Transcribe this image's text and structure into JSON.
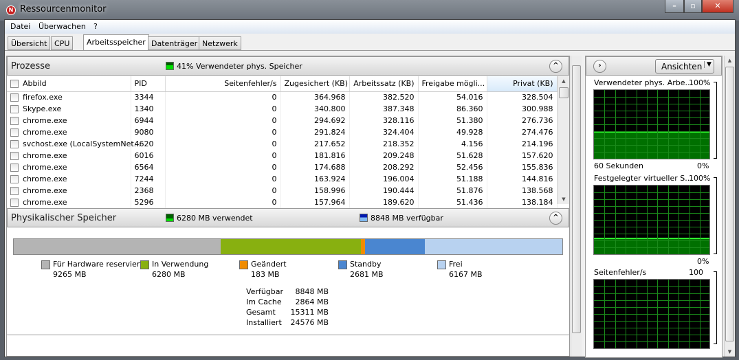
{
  "window": {
    "title": "Ressourcenmonitor",
    "icon": "resource-monitor-icon",
    "controls": [
      "minimize",
      "maximize",
      "close"
    ]
  },
  "menu": [
    "Datei",
    "Überwachen",
    "?"
  ],
  "tabs": [
    {
      "label": "Übersicht"
    },
    {
      "label": "CPU"
    },
    {
      "label": "Arbeitsspeicher",
      "active": true
    },
    {
      "label": "Datenträger"
    },
    {
      "label": "Netzwerk"
    }
  ],
  "processes": {
    "title": "Prozesse",
    "indicator": "41% Verwendeter phys. Speicher",
    "indicator_color": "#00c800",
    "columns": [
      "Abbild",
      "PID",
      "Seitenfehler/s",
      "Zugesichert (KB)",
      "Arbeitssatz (KB)",
      "Freigabe mögli...",
      "Privat (KB)"
    ],
    "sorted_column": "Privat (KB)",
    "rows": [
      [
        "firefox.exe",
        "3344",
        "0",
        "364.968",
        "382.520",
        "54.016",
        "328.504"
      ],
      [
        "Skype.exe",
        "1340",
        "0",
        "340.800",
        "387.348",
        "86.360",
        "300.988"
      ],
      [
        "chrome.exe",
        "6944",
        "0",
        "294.692",
        "328.116",
        "51.380",
        "276.736"
      ],
      [
        "chrome.exe",
        "9080",
        "0",
        "291.824",
        "324.404",
        "49.928",
        "274.476"
      ],
      [
        "svchost.exe (LocalSystemNet...",
        "4620",
        "0",
        "217.652",
        "218.352",
        "4.156",
        "214.196"
      ],
      [
        "chrome.exe",
        "6016",
        "0",
        "181.816",
        "209.248",
        "51.628",
        "157.620"
      ],
      [
        "chrome.exe",
        "6564",
        "0",
        "174.688",
        "208.292",
        "52.456",
        "155.836"
      ],
      [
        "chrome.exe",
        "7244",
        "0",
        "163.924",
        "196.004",
        "51.188",
        "144.816"
      ],
      [
        "chrome.exe",
        "2368",
        "0",
        "158.996",
        "190.444",
        "51.876",
        "138.568"
      ],
      [
        "chrome.exe",
        "5296",
        "0",
        "157.964",
        "189.620",
        "51.436",
        "138.184"
      ]
    ]
  },
  "physical": {
    "title": "Physikalischer Speicher",
    "used": "6280 MB verwendet",
    "available": "8848 MB verfügbar",
    "segments": [
      {
        "label": "Für Hardware reserviert",
        "value": "9265 MB",
        "mb": 9265,
        "color": "#b4b4b4"
      },
      {
        "label": "In Verwendung",
        "value": "6280 MB",
        "mb": 6280,
        "color": "#88b010"
      },
      {
        "label": "Geändert",
        "value": "183 MB",
        "mb": 183,
        "color": "#f08c00"
      },
      {
        "label": "Standby",
        "value": "2681 MB",
        "mb": 2681,
        "color": "#4a86d0"
      },
      {
        "label": "Frei",
        "value": "6167 MB",
        "mb": 6167,
        "color": "#b8d2f0"
      }
    ],
    "stats": [
      {
        "label": "Verfügbar",
        "value": "8848 MB"
      },
      {
        "label": "Im Cache",
        "value": "2864 MB"
      },
      {
        "label": "Gesamt",
        "value": "15311 MB"
      },
      {
        "label": "Installiert",
        "value": "24576 MB"
      }
    ]
  },
  "side": {
    "views_button": "Ansichten",
    "graphs": [
      {
        "title": "Verwendeter phys. Arbe...",
        "max": "100%",
        "min": "0%",
        "time": "60 Sekunden",
        "level_percent": 40
      },
      {
        "title": "Festgelegter virtueller S...",
        "max": "100%",
        "min": "0%",
        "level_percent": 24
      },
      {
        "title": "Seitenfehler/s",
        "max": "100",
        "level_percent": 0
      }
    ]
  }
}
